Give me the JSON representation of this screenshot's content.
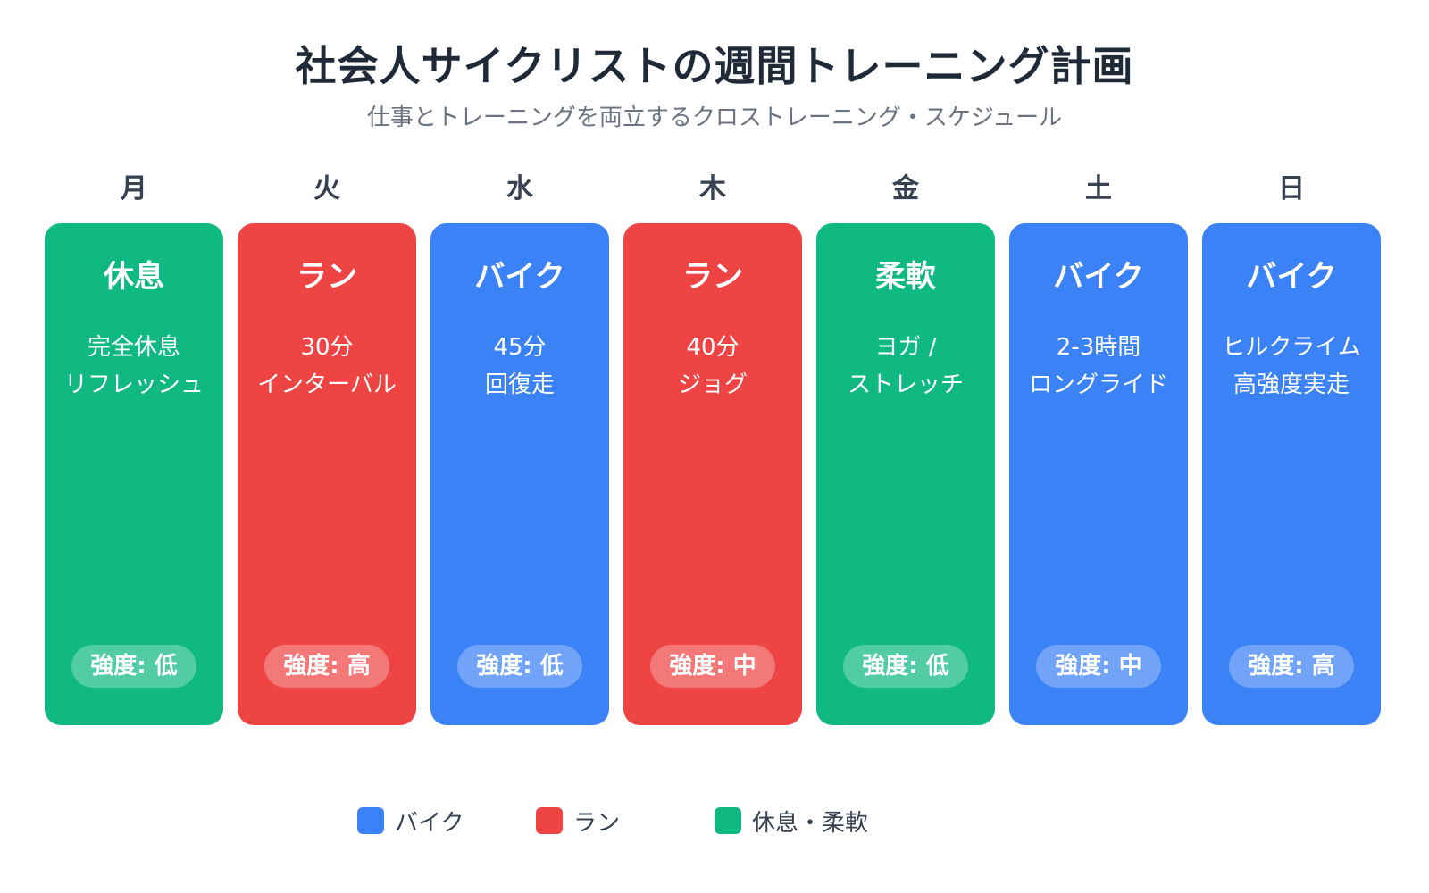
{
  "title": "社会人サイクリストの週間トレーニング計画",
  "subtitle": "仕事とトレーニングを両立するクロストレーニング・スケジュール",
  "colors": {
    "bike": "#3b82f6",
    "run": "#ef4444",
    "rest": "#10b981"
  },
  "days": [
    {
      "day": "月",
      "type": "休息",
      "category": "rest",
      "lines": [
        "完全休息",
        "リフレッシュ"
      ],
      "intensity": "強度: 低"
    },
    {
      "day": "火",
      "type": "ラン",
      "category": "run",
      "lines": [
        "30分",
        "インターバル"
      ],
      "intensity": "強度: 高"
    },
    {
      "day": "水",
      "type": "バイク",
      "category": "bike",
      "lines": [
        "45分",
        "回復走"
      ],
      "intensity": "強度: 低"
    },
    {
      "day": "木",
      "type": "ラン",
      "category": "run",
      "lines": [
        "40分",
        "ジョグ"
      ],
      "intensity": "強度: 中"
    },
    {
      "day": "金",
      "type": "柔軟",
      "category": "rest",
      "lines": [
        "ヨガ /",
        "ストレッチ"
      ],
      "intensity": "強度: 低"
    },
    {
      "day": "土",
      "type": "バイク",
      "category": "bike",
      "lines": [
        "2-3時間",
        "ロングライド"
      ],
      "intensity": "強度: 中"
    },
    {
      "day": "日",
      "type": "バイク",
      "category": "bike",
      "lines": [
        "ヒルクライム",
        "高強度実走"
      ],
      "intensity": "強度: 高"
    }
  ],
  "legend": [
    {
      "label": "バイク",
      "category": "bike"
    },
    {
      "label": "ラン",
      "category": "run"
    },
    {
      "label": "休息・柔軟",
      "category": "rest"
    }
  ]
}
